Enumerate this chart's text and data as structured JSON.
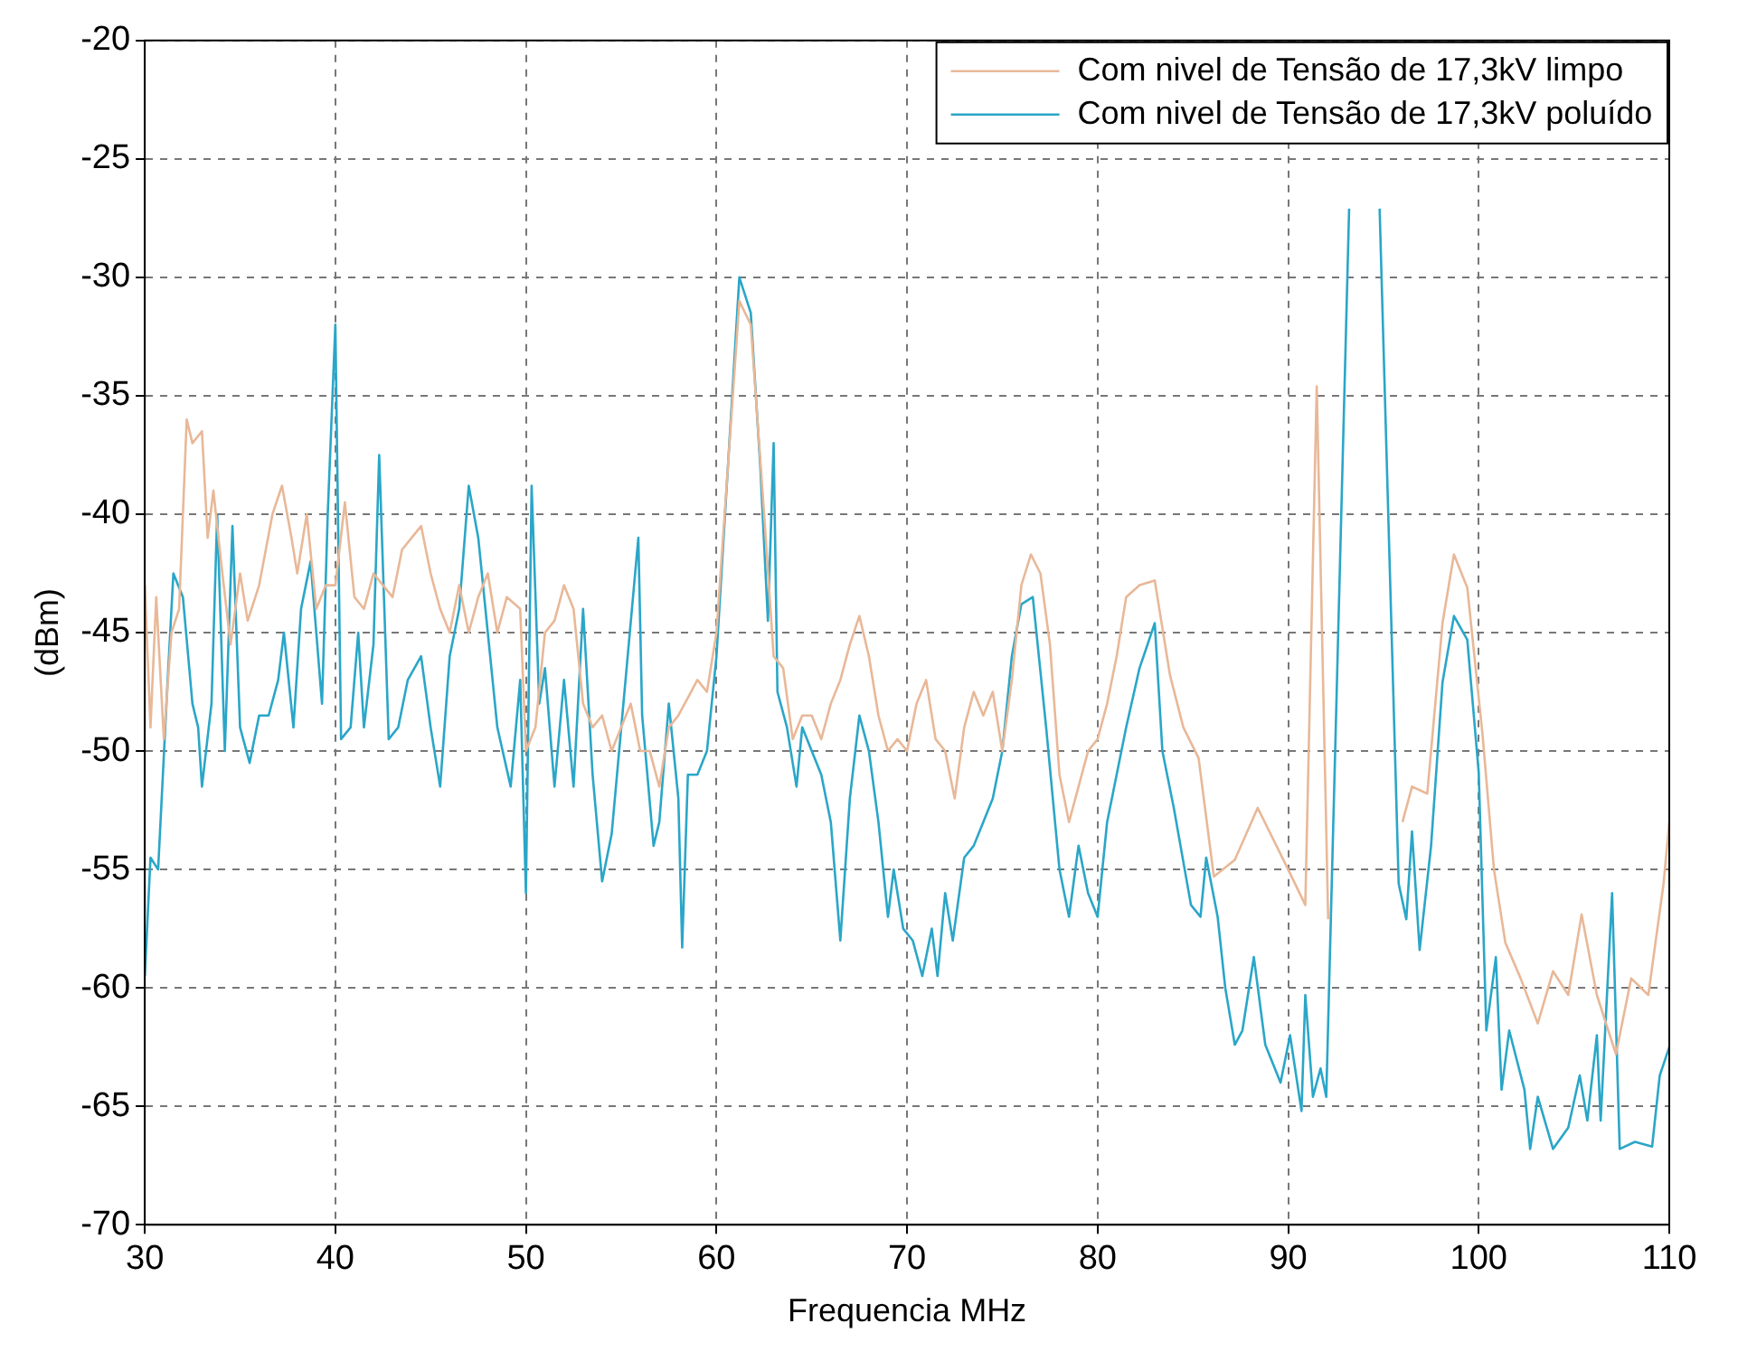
{
  "chart_data": {
    "type": "line",
    "xlabel": "Frequencia MHz",
    "ylabel": "(dBm)",
    "xlim": [
      30,
      110
    ],
    "xticks": [
      30,
      40,
      50,
      60,
      70,
      80,
      90,
      100,
      110
    ],
    "ylim": [
      -70,
      -20
    ],
    "yticks": [
      -70,
      -65,
      -60,
      -55,
      -50,
      -45,
      -40,
      -35,
      -30,
      -25,
      -20
    ],
    "grid": true,
    "legend": "top right",
    "line_style": "solid",
    "marker": "none",
    "series": [
      {
        "name": "Com nivel de Tensão de 17,3kV limpo",
        "color": "#e8b898",
        "x": [
          30,
          30.3,
          30.6,
          31,
          31.4,
          31.8,
          32.2,
          32.5,
          33,
          33.3,
          33.6,
          34,
          34.5,
          35,
          35.4,
          36,
          36.7,
          37.2,
          37.7,
          38,
          38.5,
          39,
          39.5,
          40,
          40.5,
          41,
          41.5,
          42,
          42.5,
          43,
          43.5,
          44,
          44.5,
          45,
          45.5,
          46,
          46.5,
          47,
          47.5,
          48,
          48.5,
          49,
          49.7,
          50,
          50.5,
          51,
          51.5,
          52,
          52.5,
          53,
          53.5,
          54,
          54.5,
          55,
          55.5,
          56,
          56.5,
          57,
          57.5,
          58,
          59,
          59.5,
          60,
          61.2,
          61.8,
          62.5,
          63,
          63.5,
          64,
          64.5,
          65,
          65.5,
          66,
          66.5,
          67,
          67.5,
          68,
          68.5,
          69,
          69.5,
          70,
          70.5,
          71,
          71.5,
          72,
          72.5,
          73,
          73.5,
          74,
          74.5,
          75,
          75.5,
          76,
          76.5,
          77,
          77.5,
          78,
          78.5,
          79,
          79.5,
          80,
          80.5,
          81,
          81.5,
          82.2,
          83,
          83.8,
          84.5,
          85.3,
          86.1,
          87.2,
          88.4,
          89.2,
          90,
          90.9,
          91.5,
          92.1,
          93.2,
          94,
          94.8,
          96,
          96.5,
          97.3,
          98.1,
          98.7,
          99.4,
          100.2,
          100.8,
          101.4,
          102.2,
          103.1,
          103.9,
          104.7,
          105.4,
          106.2,
          107.2,
          108,
          108.9,
          109.7,
          110
        ],
        "values": [
          -43,
          -49,
          -43.5,
          -49.5,
          -45,
          -44,
          -36,
          -37,
          -36.5,
          -41,
          -39,
          -42,
          -45.5,
          -42.5,
          -44.5,
          -43,
          -40,
          -38.8,
          -41,
          -42.5,
          -40,
          -44,
          -43,
          -43,
          -39.5,
          -43.5,
          -44,
          -42.5,
          -43,
          -43.5,
          -41.5,
          -41,
          -40.5,
          -42.5,
          -44,
          -45,
          -43,
          -45,
          -43.5,
          -42.5,
          -45,
          -43.5,
          -44,
          -50,
          -49,
          -45,
          -44.5,
          -43,
          -44,
          -48,
          -49,
          -48.5,
          -50,
          -49,
          -48,
          -50,
          -50,
          -51.5,
          -49,
          -48.5,
          -47,
          -47.5,
          -45,
          -31,
          -32,
          -40,
          -46,
          -46.5,
          -49.5,
          -48.5,
          -48.5,
          -49.5,
          -48,
          -47,
          -45.5,
          -44.3,
          -46,
          -48.5,
          -50,
          -49.5,
          -50,
          -48,
          -47,
          -49.5,
          -50,
          -52,
          -49,
          -47.5,
          -48.5,
          -47.5,
          -50,
          -47,
          -43,
          -41.7,
          -42.5,
          -45.5,
          -51,
          -53,
          -51.5,
          -50,
          -49.5,
          -48,
          -46,
          -43.5,
          -43,
          -42.8,
          -46.8,
          -49,
          -50.3,
          -55.3,
          -54.6,
          -52.4,
          -53.7,
          -55,
          -56.5,
          -34.6,
          -57.1,
          null,
          null,
          null,
          -53,
          -51.5,
          -51.8,
          -44.6,
          -41.7,
          -43.1,
          -49.3,
          -55,
          -58.1,
          -59.6,
          -61.5,
          -59.3,
          -60.3,
          -56.9,
          -60.3,
          -62.8,
          -59.6,
          -60.3,
          -55.6,
          -53
        ]
      },
      {
        "name": "Com nivel de Tensão de 17,3kV poluído",
        "color": "#2aa6c8",
        "x": [
          30,
          30.3,
          30.7,
          31.2,
          31.5,
          32,
          32.5,
          32.8,
          33,
          33.5,
          33.8,
          34.2,
          34.6,
          35,
          35.5,
          36,
          36.5,
          37,
          37.3,
          37.8,
          38.2,
          38.7,
          39,
          39.3,
          39.6,
          40,
          40.3,
          40.8,
          41.2,
          41.5,
          42,
          42.3,
          42.8,
          43.3,
          43.8,
          44.5,
          45,
          45.5,
          46,
          46.5,
          47,
          47.5,
          48,
          48.5,
          49.2,
          49.7,
          50,
          50.3,
          50.7,
          51,
          51.5,
          52,
          52.5,
          53,
          53.5,
          54,
          54.5,
          55.9,
          56.1,
          56.7,
          57,
          57.5,
          58,
          58.2,
          58.5,
          59,
          59.5,
          60,
          61.2,
          61.8,
          62.3,
          62.7,
          63,
          63.2,
          63.7,
          64.2,
          64.5,
          65,
          65.5,
          66,
          66.5,
          67,
          67.5,
          68,
          68.5,
          69,
          69.3,
          69.8,
          70.3,
          70.8,
          71.3,
          71.6,
          72,
          72.4,
          73,
          73.5,
          74,
          74.5,
          75,
          75.5,
          76,
          76.6,
          77.3,
          78,
          78.5,
          79,
          79.5,
          80,
          80.5,
          81,
          81.5,
          82.2,
          83,
          83.4,
          84,
          84.9,
          85.4,
          85.7,
          86.3,
          86.7,
          87.2,
          87.6,
          88.2,
          88.8,
          89.6,
          90.1,
          90.7,
          90.9,
          91.3,
          91.7,
          92,
          93.2,
          94,
          94.8,
          95.8,
          96.2,
          96.5,
          96.9,
          97.5,
          98.1,
          98.7,
          99.4,
          100,
          100.4,
          100.9,
          101.2,
          101.6,
          102.4,
          102.7,
          103.1,
          103.9,
          104.7,
          105.3,
          105.7,
          106.2,
          106.4,
          107,
          107.4,
          108.2,
          109.1,
          109.5,
          110
        ],
        "values": [
          -59.5,
          -54.5,
          -55,
          -47,
          -42.5,
          -43.5,
          -48,
          -49,
          -51.5,
          -48,
          -40,
          -50,
          -40.5,
          -49,
          -50.5,
          -48.5,
          -48.5,
          -47,
          -45,
          -49,
          -44,
          -42,
          -45,
          -48,
          -40,
          -32,
          -49.5,
          -49,
          -45,
          -49,
          -45.5,
          -37.5,
          -49.5,
          -49,
          -47,
          -46,
          -49,
          -51.5,
          -46,
          -44,
          -38.8,
          -41,
          -45,
          -49,
          -51.5,
          -47,
          -56,
          -38.8,
          -48,
          -46.5,
          -51.5,
          -47,
          -51.5,
          -44,
          -51,
          -55.5,
          -53.5,
          -41,
          -48.5,
          -54,
          -53,
          -48,
          -52,
          -58.3,
          -51,
          -51,
          -50,
          -46,
          -30,
          -31.5,
          -38,
          -44.5,
          -37,
          -47.5,
          -49,
          -51.5,
          -49,
          -50,
          -51,
          -53,
          -58,
          -52,
          -48.5,
          -50,
          -53,
          -57,
          -55,
          -57.5,
          -58,
          -59.5,
          -57.5,
          -59.5,
          -56,
          -58,
          -54.5,
          -54,
          -53,
          -52,
          -50,
          -46,
          -43.8,
          -43.5,
          -49,
          -55,
          -57,
          -54,
          -56,
          -57,
          -53,
          -51,
          -49,
          -46.5,
          -44.6,
          -50,
          -52.4,
          -56.5,
          -57,
          -54.5,
          -57,
          -60,
          -62.4,
          -61.8,
          -58.7,
          -62.4,
          -64,
          -62,
          -65.2,
          -60.3,
          -64.6,
          -63.4,
          -64.6,
          -27.1,
          null,
          -27.1,
          -55.6,
          -57.1,
          -53.4,
          -58.4,
          -54,
          -47.1,
          -44.3,
          -45.3,
          -50.9,
          -61.8,
          -58.7,
          -64.3,
          -61.8,
          -64.3,
          -66.8,
          -64.6,
          -66.8,
          -65.9,
          -63.7,
          -65.6,
          -62,
          -65.6,
          -56,
          -66.8,
          -66.5,
          -66.7,
          -63.7,
          -62.5
        ]
      }
    ]
  }
}
